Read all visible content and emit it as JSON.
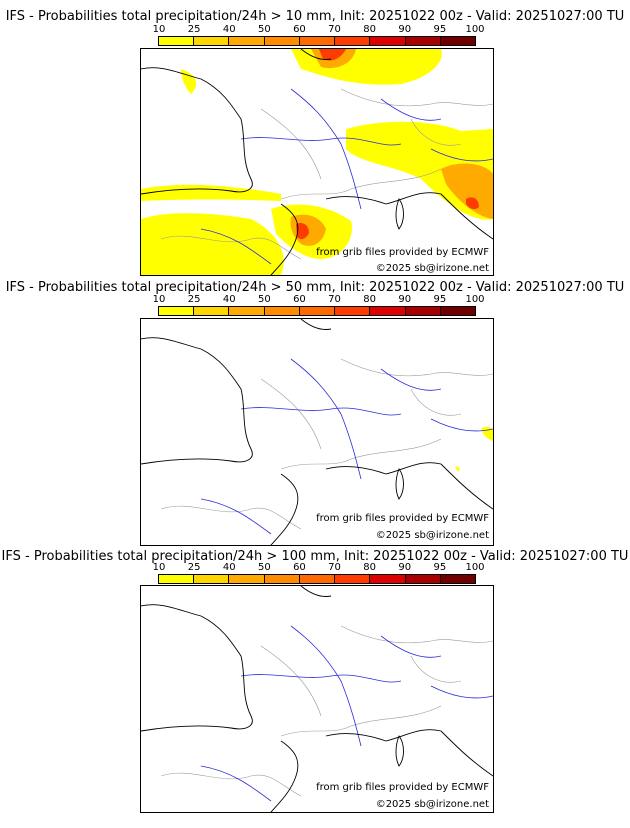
{
  "panels": [
    {
      "title": "IFS - Probabilities total precipitation/24h > 10 mm, Init: 20251022 00z - Valid: 20251027:00 TU",
      "credit_source": "from grib files provided by ECMWF",
      "credit_copyright": "©2025 sb@irizone.net"
    },
    {
      "title": "IFS - Probabilities total precipitation/24h > 50 mm, Init: 20251022 00z - Valid: 20251027:00 TU",
      "credit_source": "from grib files provided by ECMWF",
      "credit_copyright": "©2025 sb@irizone.net"
    },
    {
      "title": "IFS - Probabilities total precipitation/24h > 100 mm, Init: 20251022 00z - Valid: 20251027:00 TU",
      "credit_source": "from grib files provided by ECMWF",
      "credit_copyright": "©2025 sb@irizone.net"
    }
  ],
  "colorbar": {
    "ticks": [
      "10",
      "25",
      "40",
      "50",
      "60",
      "70",
      "80",
      "90",
      "95",
      "100"
    ],
    "colors": [
      "#ffff00",
      "#ffd500",
      "#ffaa00",
      "#ff8c00",
      "#ff6a00",
      "#ff3c00",
      "#dd0000",
      "#a80000",
      "#700000"
    ]
  },
  "colors": {
    "coast": "#000000",
    "river": "#2b2bd6",
    "border": "#9a9a9a"
  }
}
